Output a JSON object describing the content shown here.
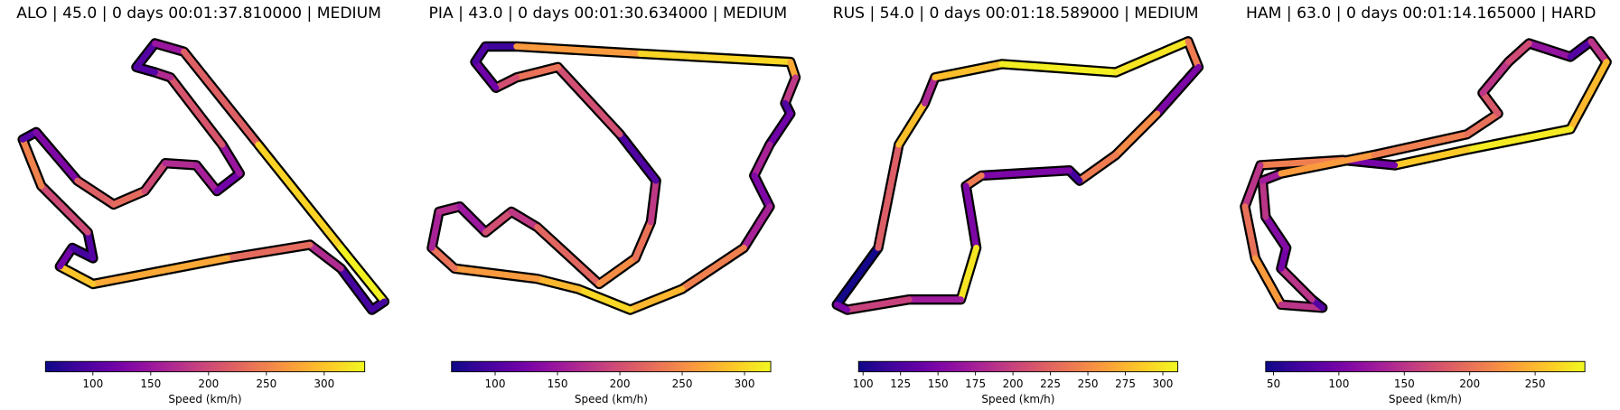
{
  "chart_data": [
    {
      "type": "track",
      "title": "ALO | 45.0 | 0 days 00:01:37.810000 | MEDIUM",
      "cmap": "plasma",
      "colorbar_label": "Speed (km/h)",
      "clim": [
        59,
        335
      ],
      "ticks": [
        100,
        150,
        200,
        250,
        300
      ],
      "x": [
        360,
        330,
        300,
        220,
        90,
        58,
        70,
        90,
        85,
        40,
        22,
        35,
        75,
        110,
        140,
        160,
        190,
        210,
        232,
        215,
        165,
        150,
        132,
        150,
        178,
        250,
        330,
        372,
        360
      ],
      "y": [
        300,
        260,
        237,
        250,
        275,
        258,
        240,
        250,
        225,
        180,
        135,
        128,
        175,
        198,
        185,
        158,
        160,
        185,
        168,
        140,
        75,
        70,
        65,
        42,
        50,
        140,
        240,
        292,
        300
      ],
      "speed": [
        90,
        170,
        230,
        280,
        300,
        120,
        90,
        100,
        200,
        250,
        100,
        130,
        220,
        230,
        200,
        170,
        160,
        120,
        150,
        210,
        170,
        100,
        100,
        150,
        220,
        310,
        330,
        90,
        90
      ]
    },
    {
      "type": "track",
      "title": "PIA | 43.0 | 0 days 00:01:30.634000 | MEDIUM",
      "cmap": "plasma",
      "colorbar_label": "Speed (km/h)",
      "clim": [
        65,
        321
      ],
      "ticks": [
        100,
        150,
        200,
        250,
        300
      ],
      "x": [
        470,
        500,
        620,
        765,
        770,
        760,
        765,
        745,
        730,
        745,
        720,
        660,
        610,
        560,
        520,
        440,
        418,
        425,
        445,
        470,
        495,
        520,
        580,
        615,
        630,
        635,
        600,
        540,
        500,
        480,
        460,
        470
      ],
      "y": [
        45,
        45,
        52,
        60,
        75,
        100,
        110,
        140,
        170,
        200,
        240,
        280,
        300,
        280,
        270,
        260,
        240,
        205,
        200,
        225,
        205,
        220,
        275,
        250,
        215,
        175,
        130,
        65,
        75,
        85,
        60,
        45
      ],
      "speed": [
        90,
        260,
        300,
        270,
        180,
        100,
        120,
        160,
        130,
        160,
        240,
        280,
        300,
        280,
        260,
        230,
        160,
        170,
        150,
        200,
        180,
        220,
        250,
        230,
        180,
        100,
        200,
        230,
        200,
        120,
        100,
        90
      ]
    },
    {
      "type": "track",
      "title": "RUS | 54.0 | 0 days 00:01:18.589000 | MEDIUM",
      "cmap": "plasma",
      "colorbar_label": "Speed (km/h)",
      "clim": [
        97,
        310
      ],
      "ticks": [
        100,
        125,
        150,
        175,
        200,
        225,
        250,
        275,
        300
      ],
      "x": [
        810,
        850,
        870,
        895,
        905,
        970,
        1080,
        1150,
        1160,
        1120,
        1080,
        1045,
        1035,
        950,
        935,
        945,
        930,
        880,
        820,
        810
      ],
      "y": [
        295,
        240,
        140,
        100,
        75,
        62,
        70,
        40,
        65,
        110,
        150,
        175,
        165,
        170,
        180,
        240,
        290,
        290,
        300,
        295
      ],
      "speed": [
        100,
        220,
        280,
        180,
        280,
        305,
        300,
        240,
        150,
        250,
        240,
        120,
        150,
        240,
        150,
        300,
        170,
        200,
        150,
        100
      ]
    },
    {
      "type": "track",
      "title": "HAM | 63.0 | 0 days 00:01:14.165000 | HARD",
      "cmap": "plasma",
      "colorbar_label": "Speed (km/h)",
      "clim": [
        44,
        288
      ],
      "ticks": [
        50,
        100,
        150,
        200,
        250
      ],
      "x": [
        1480,
        1520,
        1540,
        1555,
        1520,
        1420,
        1350,
        1300,
        1220,
        1205,
        1215,
        1240,
        1280,
        1270,
        1240,
        1245,
        1225,
        1222,
        1240,
        1330,
        1420,
        1450,
        1435,
        1460,
        1480
      ],
      "y": [
        42,
        55,
        40,
        60,
        125,
        145,
        160,
        155,
        160,
        200,
        250,
        295,
        298,
        290,
        260,
        240,
        210,
        175,
        168,
        150,
        130,
        110,
        90,
        60,
        42
      ],
      "speed": [
        120,
        80,
        150,
        250,
        280,
        260,
        100,
        210,
        150,
        200,
        230,
        150,
        80,
        150,
        100,
        110,
        150,
        130,
        230,
        210,
        200,
        180,
        150,
        170,
        120
      ]
    }
  ]
}
